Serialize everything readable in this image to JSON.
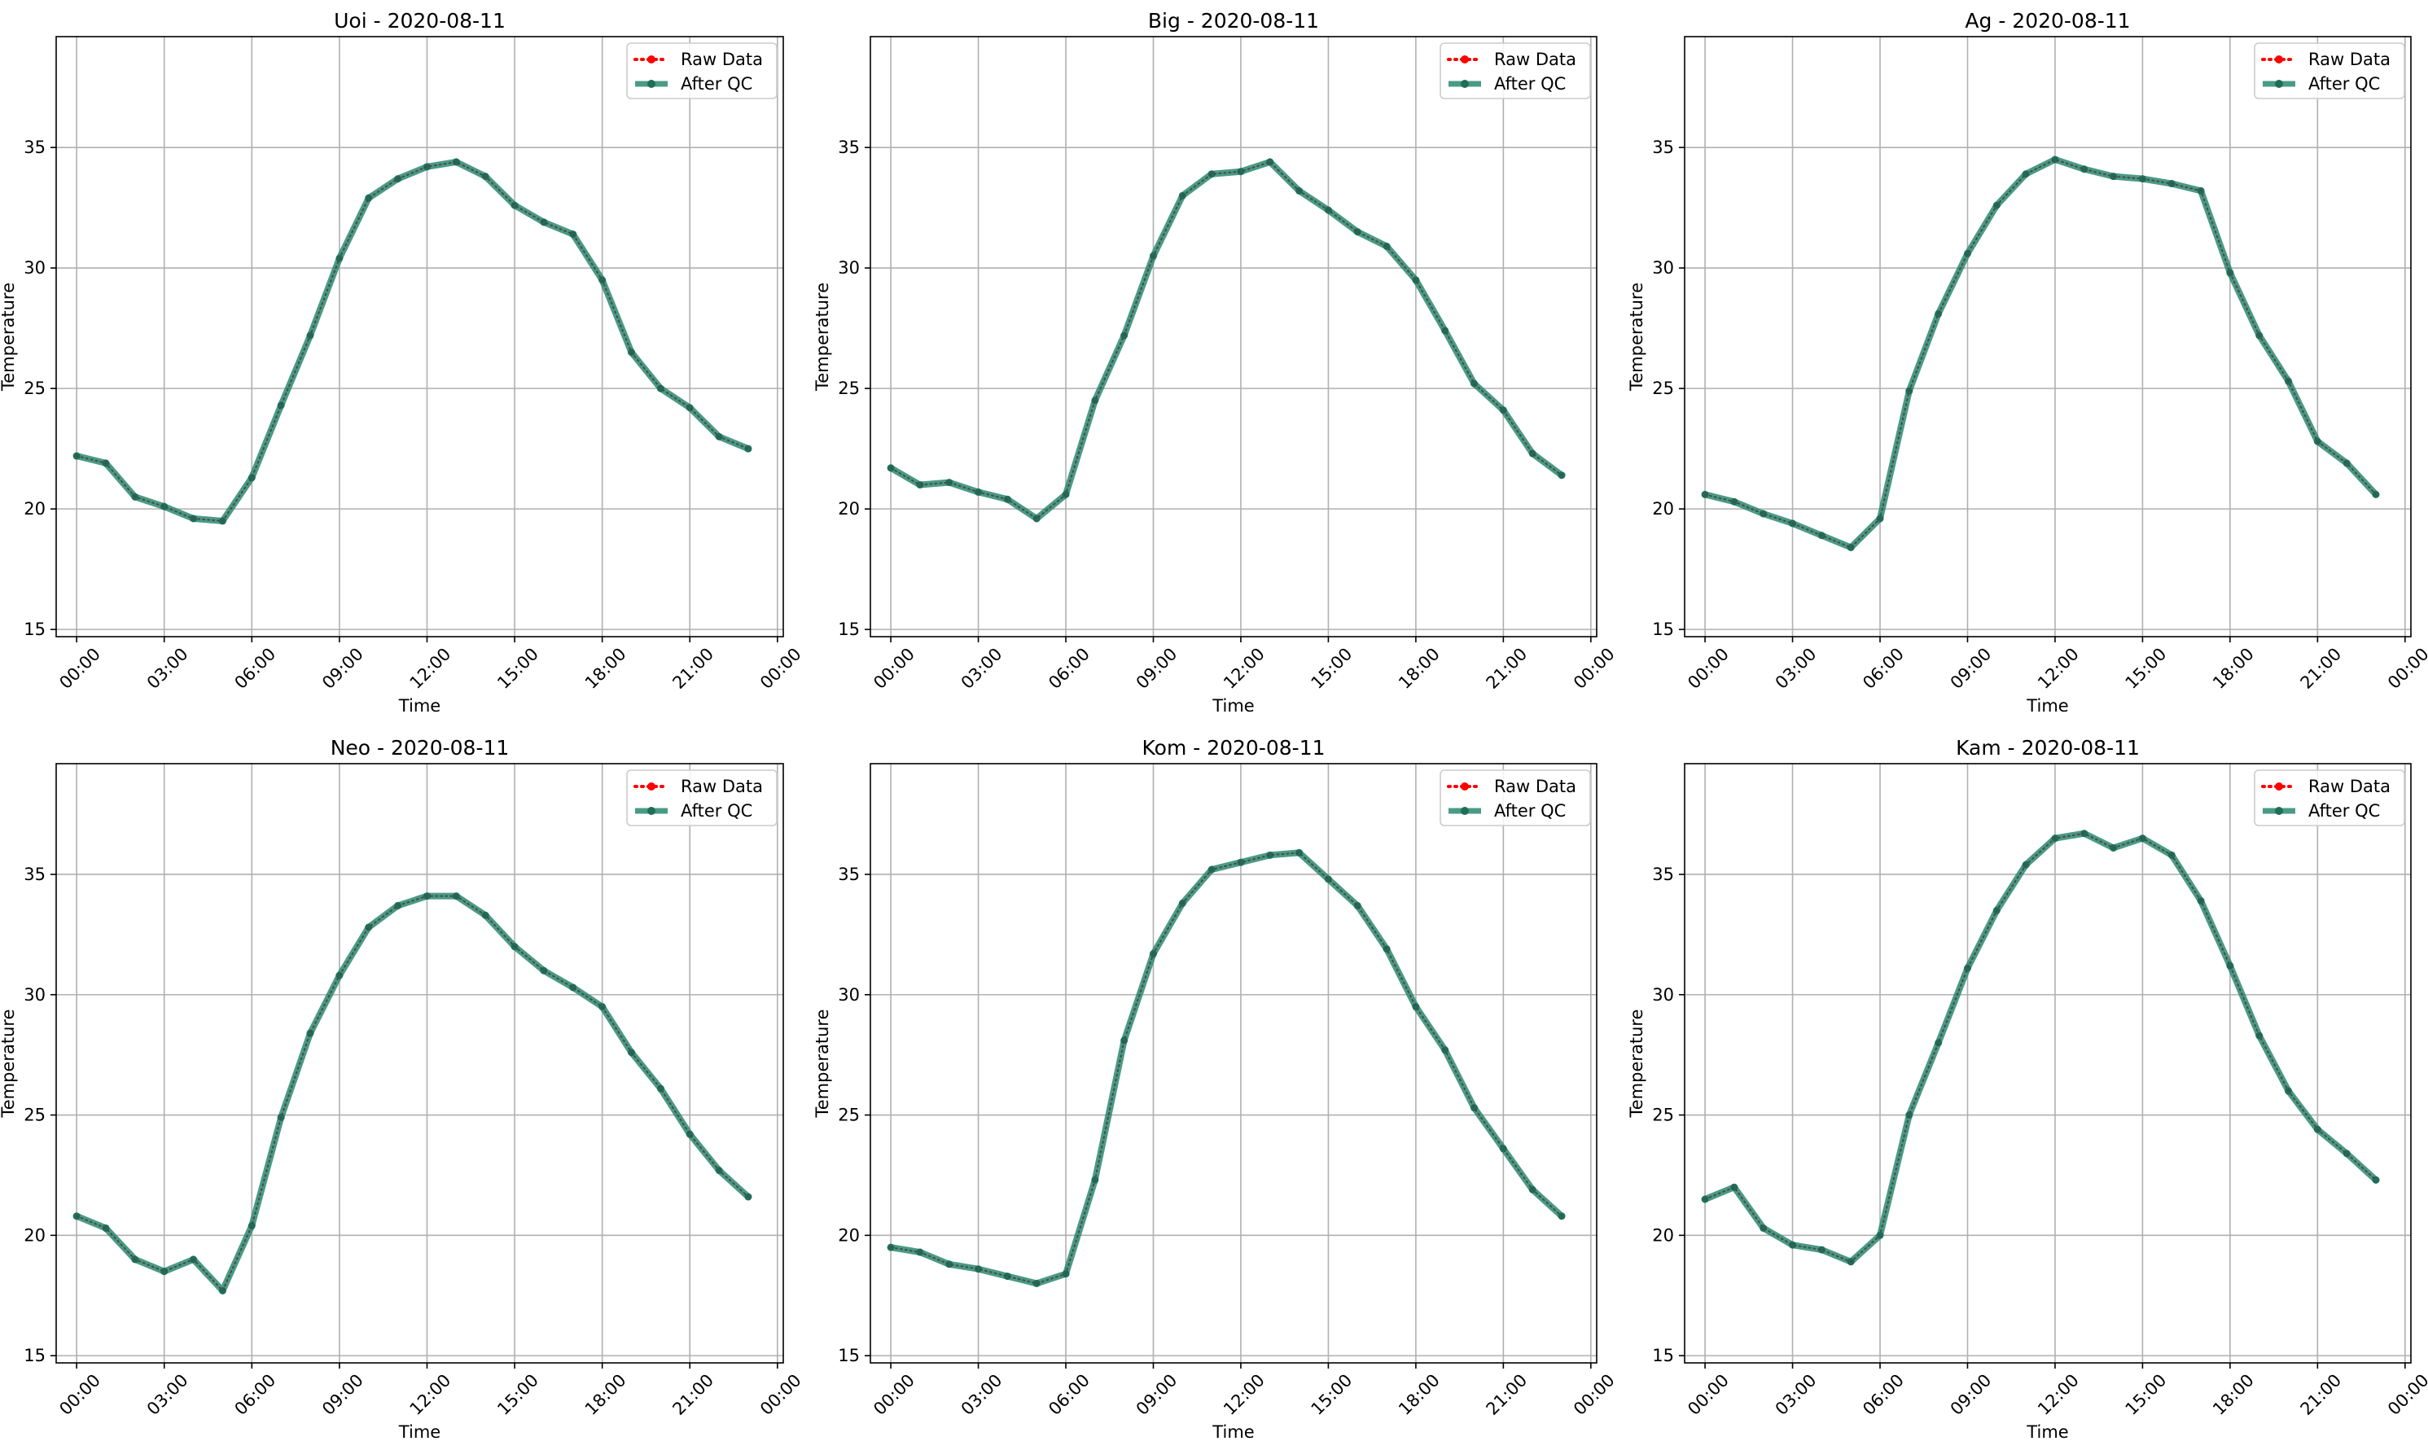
{
  "figure": {
    "background": "#ffffff",
    "colors": {
      "raw": "#ff0000",
      "qc": "#2a8a6f",
      "qc_marker": "#1e6e58",
      "grid": "#b0b0b0",
      "axis": "#000000"
    }
  },
  "chart_data": [
    {
      "type": "line",
      "title": "Uoi - 2020-08-11",
      "xlabel": "Time",
      "ylabel": "Temperature",
      "x": [
        "00:00",
        "01:00",
        "02:00",
        "03:00",
        "04:00",
        "05:00",
        "06:00",
        "07:00",
        "08:00",
        "09:00",
        "10:00",
        "11:00",
        "12:00",
        "13:00",
        "14:00",
        "15:00",
        "16:00",
        "17:00",
        "18:00",
        "19:00",
        "20:00",
        "21:00",
        "22:00",
        "23:00"
      ],
      "xticks": [
        "00:00",
        "03:00",
        "06:00",
        "09:00",
        "12:00",
        "15:00",
        "18:00",
        "21:00",
        "00:00"
      ],
      "xlim": [
        -0.7,
        24.2
      ],
      "ylim": [
        14.7,
        39.6
      ],
      "yticks": [
        15,
        20,
        25,
        30,
        35
      ],
      "grid": true,
      "legend_position": "top-right",
      "series": [
        {
          "name": "Raw Data",
          "style": "dotted",
          "color": "#ff0000",
          "values": [
            22.2,
            21.9,
            20.5,
            20.1,
            19.6,
            19.5,
            21.3,
            24.3,
            27.2,
            30.4,
            32.9,
            33.7,
            34.2,
            34.4,
            33.8,
            32.6,
            31.9,
            31.4,
            29.5,
            26.5,
            25.0,
            24.2,
            23.0,
            22.5
          ]
        },
        {
          "name": "After QC",
          "style": "solid",
          "color": "#2a8a6f",
          "values": [
            22.2,
            21.9,
            20.5,
            20.1,
            19.6,
            19.5,
            21.3,
            24.3,
            27.2,
            30.4,
            32.9,
            33.7,
            34.2,
            34.4,
            33.8,
            32.6,
            31.9,
            31.4,
            29.5,
            26.5,
            25.0,
            24.2,
            23.0,
            22.5
          ]
        }
      ]
    },
    {
      "type": "line",
      "title": "Big - 2020-08-11",
      "xlabel": "Time",
      "ylabel": "Temperature",
      "x": [
        "00:00",
        "01:00",
        "02:00",
        "03:00",
        "04:00",
        "05:00",
        "06:00",
        "07:00",
        "08:00",
        "09:00",
        "10:00",
        "11:00",
        "12:00",
        "13:00",
        "14:00",
        "15:00",
        "16:00",
        "17:00",
        "18:00",
        "19:00",
        "20:00",
        "21:00",
        "22:00",
        "23:00"
      ],
      "xticks": [
        "00:00",
        "03:00",
        "06:00",
        "09:00",
        "12:00",
        "15:00",
        "18:00",
        "21:00",
        "00:00"
      ],
      "xlim": [
        -0.7,
        24.2
      ],
      "ylim": [
        14.7,
        39.6
      ],
      "yticks": [
        15,
        20,
        25,
        30,
        35
      ],
      "grid": true,
      "legend_position": "top-right",
      "series": [
        {
          "name": "Raw Data",
          "style": "dotted",
          "color": "#ff0000",
          "values": [
            21.7,
            21.0,
            21.1,
            20.7,
            20.4,
            19.6,
            20.6,
            24.5,
            27.2,
            30.5,
            33.0,
            33.9,
            34.0,
            34.4,
            33.2,
            32.4,
            31.5,
            30.9,
            29.5,
            27.4,
            25.2,
            24.1,
            22.3,
            21.4
          ]
        },
        {
          "name": "After QC",
          "style": "solid",
          "color": "#2a8a6f",
          "values": [
            21.7,
            21.0,
            21.1,
            20.7,
            20.4,
            19.6,
            20.6,
            24.5,
            27.2,
            30.5,
            33.0,
            33.9,
            34.0,
            34.4,
            33.2,
            32.4,
            31.5,
            30.9,
            29.5,
            27.4,
            25.2,
            24.1,
            22.3,
            21.4
          ]
        }
      ]
    },
    {
      "type": "line",
      "title": "Ag - 2020-08-11",
      "xlabel": "Time",
      "ylabel": "Temperature",
      "x": [
        "00:00",
        "01:00",
        "02:00",
        "03:00",
        "04:00",
        "05:00",
        "06:00",
        "07:00",
        "08:00",
        "09:00",
        "10:00",
        "11:00",
        "12:00",
        "13:00",
        "14:00",
        "15:00",
        "16:00",
        "17:00",
        "18:00",
        "19:00",
        "20:00",
        "21:00",
        "22:00",
        "23:00"
      ],
      "xticks": [
        "00:00",
        "03:00",
        "06:00",
        "09:00",
        "12:00",
        "15:00",
        "18:00",
        "21:00",
        "00:00"
      ],
      "xlim": [
        -0.7,
        24.2
      ],
      "ylim": [
        14.7,
        39.6
      ],
      "yticks": [
        15,
        20,
        25,
        30,
        35
      ],
      "grid": true,
      "legend_position": "top-right",
      "series": [
        {
          "name": "Raw Data",
          "style": "dotted",
          "color": "#ff0000",
          "values": [
            20.6,
            20.3,
            19.8,
            19.4,
            18.9,
            18.4,
            19.6,
            24.9,
            28.1,
            30.6,
            32.6,
            33.9,
            34.5,
            34.1,
            33.8,
            33.7,
            33.5,
            33.2,
            29.8,
            27.2,
            25.3,
            22.8,
            21.9,
            20.6
          ]
        },
        {
          "name": "After QC",
          "style": "solid",
          "color": "#2a8a6f",
          "values": [
            20.6,
            20.3,
            19.8,
            19.4,
            18.9,
            18.4,
            19.6,
            24.9,
            28.1,
            30.6,
            32.6,
            33.9,
            34.5,
            34.1,
            33.8,
            33.7,
            33.5,
            33.2,
            29.8,
            27.2,
            25.3,
            22.8,
            21.9,
            20.6
          ]
        }
      ]
    },
    {
      "type": "line",
      "title": "Neo - 2020-08-11",
      "xlabel": "Time",
      "ylabel": "Temperature",
      "x": [
        "00:00",
        "01:00",
        "02:00",
        "03:00",
        "04:00",
        "05:00",
        "06:00",
        "07:00",
        "08:00",
        "09:00",
        "10:00",
        "11:00",
        "12:00",
        "13:00",
        "14:00",
        "15:00",
        "16:00",
        "17:00",
        "18:00",
        "19:00",
        "20:00",
        "21:00",
        "22:00",
        "23:00"
      ],
      "xticks": [
        "00:00",
        "03:00",
        "06:00",
        "09:00",
        "12:00",
        "15:00",
        "18:00",
        "21:00",
        "00:00"
      ],
      "xlim": [
        -0.7,
        24.2
      ],
      "ylim": [
        14.7,
        39.6
      ],
      "yticks": [
        15,
        20,
        25,
        30,
        35
      ],
      "grid": true,
      "legend_position": "top-right",
      "series": [
        {
          "name": "Raw Data",
          "style": "dotted",
          "color": "#ff0000",
          "values": [
            20.8,
            20.3,
            19.0,
            18.5,
            19.0,
            17.7,
            20.4,
            24.9,
            28.4,
            30.8,
            32.8,
            33.7,
            34.1,
            34.1,
            33.3,
            32.0,
            31.0,
            30.3,
            29.5,
            27.6,
            26.1,
            24.2,
            22.7,
            21.6
          ]
        },
        {
          "name": "After QC",
          "style": "solid",
          "color": "#2a8a6f",
          "values": [
            20.8,
            20.3,
            19.0,
            18.5,
            19.0,
            17.7,
            20.4,
            24.9,
            28.4,
            30.8,
            32.8,
            33.7,
            34.1,
            34.1,
            33.3,
            32.0,
            31.0,
            30.3,
            29.5,
            27.6,
            26.1,
            24.2,
            22.7,
            21.6
          ]
        }
      ]
    },
    {
      "type": "line",
      "title": "Kom - 2020-08-11",
      "xlabel": "Time",
      "ylabel": "Temperature",
      "x": [
        "00:00",
        "01:00",
        "02:00",
        "03:00",
        "04:00",
        "05:00",
        "06:00",
        "07:00",
        "08:00",
        "09:00",
        "10:00",
        "11:00",
        "12:00",
        "13:00",
        "14:00",
        "15:00",
        "16:00",
        "17:00",
        "18:00",
        "19:00",
        "20:00",
        "21:00",
        "22:00",
        "23:00"
      ],
      "xticks": [
        "00:00",
        "03:00",
        "06:00",
        "09:00",
        "12:00",
        "15:00",
        "18:00",
        "21:00",
        "00:00"
      ],
      "xlim": [
        -0.7,
        24.2
      ],
      "ylim": [
        14.7,
        39.6
      ],
      "yticks": [
        15,
        20,
        25,
        30,
        35
      ],
      "grid": true,
      "legend_position": "top-right",
      "series": [
        {
          "name": "Raw Data",
          "style": "dotted",
          "color": "#ff0000",
          "values": [
            19.5,
            19.3,
            18.8,
            18.6,
            18.3,
            18.0,
            18.4,
            22.3,
            28.1,
            31.7,
            33.8,
            35.2,
            35.5,
            35.8,
            35.9,
            34.8,
            33.7,
            31.9,
            29.5,
            27.7,
            25.3,
            23.6,
            21.9,
            20.8
          ]
        },
        {
          "name": "After QC",
          "style": "solid",
          "color": "#2a8a6f",
          "values": [
            19.5,
            19.3,
            18.8,
            18.6,
            18.3,
            18.0,
            18.4,
            22.3,
            28.1,
            31.7,
            33.8,
            35.2,
            35.5,
            35.8,
            35.9,
            34.8,
            33.7,
            31.9,
            29.5,
            27.7,
            25.3,
            23.6,
            21.9,
            20.8
          ]
        }
      ]
    },
    {
      "type": "line",
      "title": "Kam - 2020-08-11",
      "xlabel": "Time",
      "ylabel": "Temperature",
      "x": [
        "00:00",
        "01:00",
        "02:00",
        "03:00",
        "04:00",
        "05:00",
        "06:00",
        "07:00",
        "08:00",
        "09:00",
        "10:00",
        "11:00",
        "12:00",
        "13:00",
        "14:00",
        "15:00",
        "16:00",
        "17:00",
        "18:00",
        "19:00",
        "20:00",
        "21:00",
        "22:00",
        "23:00"
      ],
      "xticks": [
        "00:00",
        "03:00",
        "06:00",
        "09:00",
        "12:00",
        "15:00",
        "18:00",
        "21:00",
        "00:00"
      ],
      "xlim": [
        -0.7,
        24.2
      ],
      "ylim": [
        14.7,
        39.6
      ],
      "yticks": [
        15,
        20,
        25,
        30,
        35
      ],
      "grid": true,
      "legend_position": "top-right",
      "series": [
        {
          "name": "Raw Data",
          "style": "dotted",
          "color": "#ff0000",
          "values": [
            21.5,
            22.0,
            20.3,
            19.6,
            19.4,
            18.9,
            20.0,
            25.0,
            28.0,
            31.1,
            33.5,
            35.4,
            36.5,
            36.7,
            36.1,
            36.5,
            35.8,
            33.9,
            31.2,
            28.3,
            26.0,
            24.4,
            23.4,
            22.3
          ]
        },
        {
          "name": "After QC",
          "style": "solid",
          "color": "#2a8a6f",
          "values": [
            21.5,
            22.0,
            20.3,
            19.6,
            19.4,
            18.9,
            20.0,
            25.0,
            28.0,
            31.1,
            33.5,
            35.4,
            36.5,
            36.7,
            36.1,
            36.5,
            35.8,
            33.9,
            31.2,
            28.3,
            26.0,
            24.4,
            23.4,
            22.3
          ]
        }
      ]
    }
  ]
}
